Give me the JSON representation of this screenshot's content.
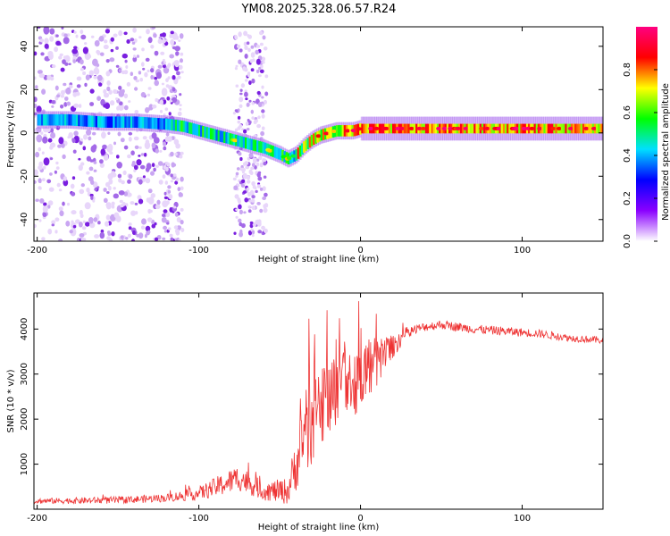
{
  "title": "YM08.2025.328.06.57.R24",
  "chart_data": [
    {
      "type": "heatmap",
      "name": "spectrogram",
      "xlabel": "Height of straight line (km)",
      "ylabel": "Frequency (Hz)",
      "xlim": [
        -202,
        150
      ],
      "ylim": [
        -50,
        49
      ],
      "xticks": [
        -200,
        -100,
        0,
        100
      ],
      "yticks": [
        -40,
        -20,
        0,
        20,
        40
      ],
      "ridge_frequency_hz": {
        "x": [
          -200,
          -180,
          -160,
          -140,
          -120,
          -110,
          -100,
          -90,
          -80,
          -70,
          -60,
          -50,
          -45,
          -40,
          -35,
          -30,
          -25,
          -20,
          -15,
          -10,
          -5,
          0,
          10,
          20,
          40,
          60,
          80,
          100,
          120,
          150
        ],
        "y": [
          6,
          6,
          5,
          5,
          4,
          3,
          1,
          -1,
          -3,
          -5,
          -7,
          -10,
          -12,
          -10,
          -6,
          -3,
          -1,
          0,
          1,
          1,
          1,
          2,
          2,
          2,
          2,
          2,
          2,
          2,
          2,
          2
        ]
      },
      "colorbar": {
        "label": "Normalized spectral amplitude",
        "range": [
          0,
          1
        ],
        "ticks": [
          0.0,
          0.2,
          0.4,
          0.6,
          0.8
        ],
        "tick_labels": [
          "0.0",
          "0.2",
          "0.4",
          "0.6",
          "0.8"
        ],
        "colors": [
          "#ffffff",
          "#8a00ff",
          "#0000ff",
          "#00e0ff",
          "#00ff00",
          "#ffff00",
          "#ff0000",
          "#ff0080"
        ]
      }
    },
    {
      "type": "line",
      "name": "snr",
      "xlabel": "Height of straight line (km)",
      "ylabel": "SNR (10 * v/v)",
      "xlim": [
        -202,
        150
      ],
      "ylim": [
        0,
        4800
      ],
      "xticks": [
        -200,
        -100,
        0,
        100
      ],
      "yticks": [
        1000,
        2000,
        3000,
        4000
      ],
      "color": "#ee3333",
      "envelope": {
        "x": [
          -202,
          -150,
          -120,
          -100,
          -85,
          -75,
          -60,
          -45,
          -40,
          -35,
          -30,
          -25,
          -20,
          -15,
          -10,
          -5,
          0,
          5,
          10,
          15,
          20,
          25,
          30,
          40,
          50,
          70,
          90,
          110,
          130,
          150
        ],
        "y": [
          180,
          200,
          250,
          350,
          550,
          700,
          400,
          400,
          1000,
          1500,
          2200,
          2000,
          2700,
          2600,
          3000,
          2800,
          2900,
          3200,
          3200,
          3500,
          3600,
          3800,
          3950,
          4050,
          4100,
          4000,
          3950,
          3900,
          3800,
          3750
        ],
        "noise": [
          60,
          80,
          90,
          150,
          250,
          300,
          200,
          300,
          600,
          900,
          1200,
          1100,
          1100,
          900,
          800,
          700,
          800,
          700,
          600,
          400,
          250,
          200,
          120,
          100,
          100,
          100,
          100,
          90,
          80,
          80
        ]
      }
    }
  ]
}
